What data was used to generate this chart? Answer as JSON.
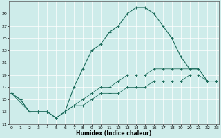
{
  "xlabel": "Humidex (Indice chaleur)",
  "bg_color": "#ceecea",
  "grid_color": "#ffffff",
  "line_color": "#1a6b5a",
  "line1_x": [
    0,
    1,
    2,
    3,
    4,
    5,
    6,
    7,
    8,
    9,
    10,
    11,
    12,
    13,
    14,
    15,
    16,
    17,
    18,
    19,
    20,
    21,
    22,
    23
  ],
  "line1_y": [
    16,
    15,
    13,
    13,
    13,
    12,
    13,
    17,
    20,
    23,
    24,
    26,
    27,
    29,
    30,
    30,
    29,
    27,
    25,
    22,
    20,
    20,
    18,
    18
  ],
  "line2_x": [
    0,
    1,
    2,
    3,
    4,
    5,
    6,
    7,
    8,
    9,
    10,
    11,
    12,
    13,
    14,
    15,
    16,
    17,
    18,
    19,
    20,
    21,
    22,
    23
  ],
  "line2_y": [
    16,
    15,
    13,
    13,
    13,
    12,
    13,
    14,
    15,
    16,
    17,
    17,
    18,
    19,
    19,
    19,
    20,
    20,
    20,
    20,
    20,
    20,
    18,
    18
  ],
  "line3_x": [
    0,
    2,
    3,
    4,
    5,
    6,
    7,
    8,
    9,
    10,
    11,
    12,
    13,
    14,
    15,
    16,
    17,
    18,
    19,
    20,
    21,
    22,
    23
  ],
  "line3_y": [
    16,
    13,
    13,
    13,
    12,
    13,
    14,
    14,
    15,
    16,
    16,
    16,
    17,
    17,
    17,
    18,
    18,
    18,
    18,
    19,
    19,
    18,
    18
  ],
  "xlim": [
    -0.3,
    23.3
  ],
  "ylim": [
    11,
    31
  ],
  "yticks": [
    11,
    13,
    15,
    17,
    19,
    21,
    23,
    25,
    27,
    29
  ],
  "xticks": [
    0,
    1,
    2,
    3,
    4,
    5,
    6,
    7,
    8,
    9,
    10,
    11,
    12,
    13,
    14,
    15,
    16,
    17,
    18,
    19,
    20,
    21,
    22,
    23
  ]
}
